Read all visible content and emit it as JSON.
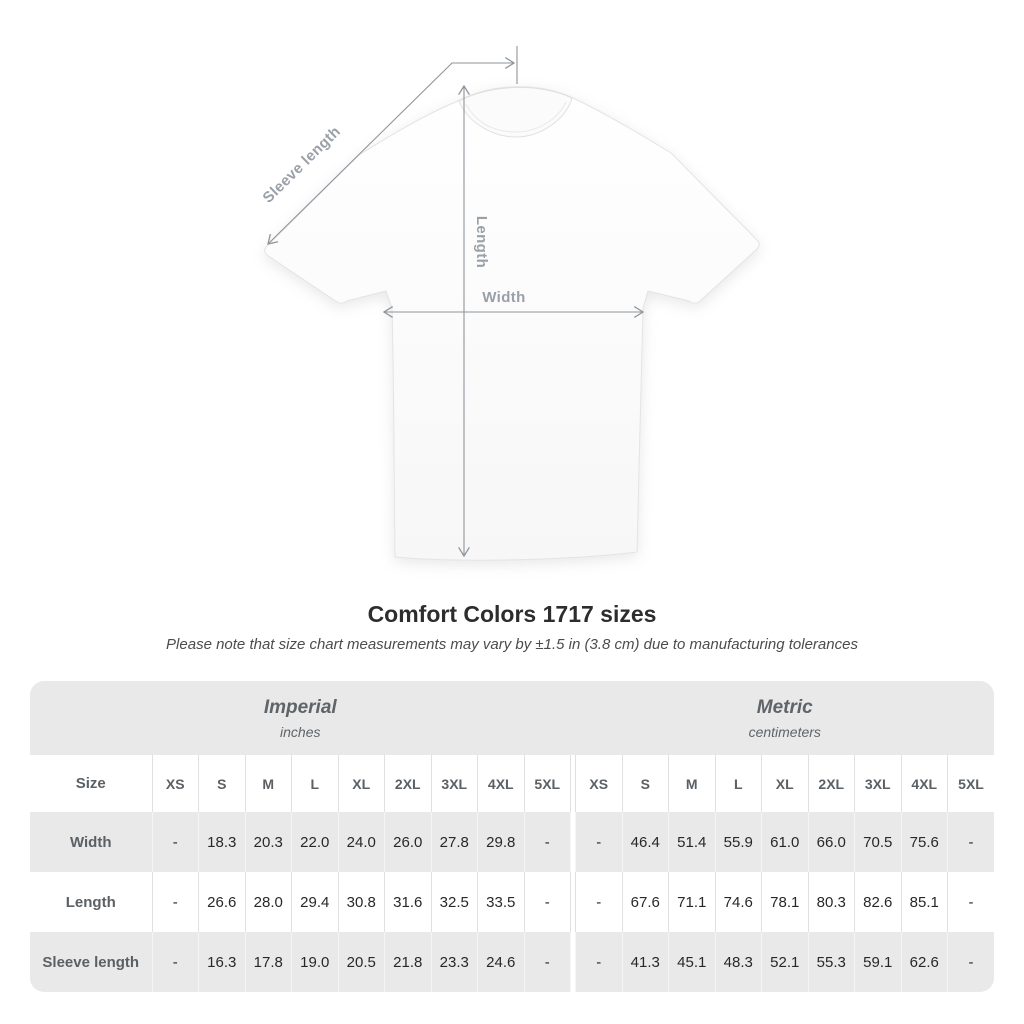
{
  "title": "Comfort Colors 1717 sizes",
  "subtitle": "Please note that size chart measurements may vary by ±1.5 in (3.8 cm) due to manufacturing tolerances",
  "diagram": {
    "labels": {
      "sleeve_length": "Sleeve length",
      "length": "Length",
      "width": "Width"
    },
    "line_color": "#8f959b",
    "label_color": "#9aa0a7"
  },
  "table": {
    "size_header": "Size",
    "groups": [
      {
        "name": "Imperial",
        "unit": "inches"
      },
      {
        "name": "Metric",
        "unit": "centimeters"
      }
    ],
    "sizes": [
      "XS",
      "S",
      "M",
      "L",
      "XL",
      "2XL",
      "3XL",
      "4XL",
      "5XL"
    ],
    "rows": [
      {
        "label": "Width",
        "imperial": [
          "-",
          "18.3",
          "20.3",
          "22.0",
          "24.0",
          "26.0",
          "27.8",
          "29.8",
          "-"
        ],
        "metric": [
          "-",
          "46.4",
          "51.4",
          "55.9",
          "61.0",
          "66.0",
          "70.5",
          "75.6",
          "-"
        ]
      },
      {
        "label": "Length",
        "imperial": [
          "-",
          "26.6",
          "28.0",
          "29.4",
          "30.8",
          "31.6",
          "32.5",
          "33.5",
          "-"
        ],
        "metric": [
          "-",
          "67.6",
          "71.1",
          "74.6",
          "78.1",
          "80.3",
          "82.6",
          "85.1",
          "-"
        ]
      },
      {
        "label": "Sleeve length",
        "imperial": [
          "-",
          "16.3",
          "17.8",
          "19.0",
          "20.5",
          "21.8",
          "23.3",
          "24.6",
          "-"
        ],
        "metric": [
          "-",
          "41.3",
          "45.1",
          "48.3",
          "52.1",
          "55.3",
          "59.1",
          "62.6",
          "-"
        ]
      }
    ],
    "colors": {
      "band_bg": "#e9e9e9",
      "stripe_bg": "#e9e9e9",
      "white_bg": "#ffffff",
      "header_text": "#5f6468",
      "value_text": "#26282a"
    }
  },
  "chart_data": {
    "type": "table",
    "title": "Comfort Colors 1717 sizes",
    "note": "Please note that size chart measurements may vary by ±1.5 in (3.8 cm) due to manufacturing tolerances",
    "column_groups": [
      "Imperial (inches)",
      "Metric (centimeters)"
    ],
    "categories": [
      "XS",
      "S",
      "M",
      "L",
      "XL",
      "2XL",
      "3XL",
      "4XL",
      "5XL"
    ],
    "series": [
      {
        "name": "Width (in)",
        "values": [
          null,
          18.3,
          20.3,
          22.0,
          24.0,
          26.0,
          27.8,
          29.8,
          null
        ]
      },
      {
        "name": "Length (in)",
        "values": [
          null,
          26.6,
          28.0,
          29.4,
          30.8,
          31.6,
          32.5,
          33.5,
          null
        ]
      },
      {
        "name": "Sleeve length (in)",
        "values": [
          null,
          16.3,
          17.8,
          19.0,
          20.5,
          21.8,
          23.3,
          24.6,
          null
        ]
      },
      {
        "name": "Width (cm)",
        "values": [
          null,
          46.4,
          51.4,
          55.9,
          61.0,
          66.0,
          70.5,
          75.6,
          null
        ]
      },
      {
        "name": "Length (cm)",
        "values": [
          null,
          67.6,
          71.1,
          74.6,
          78.1,
          80.3,
          82.6,
          85.1,
          null
        ]
      },
      {
        "name": "Sleeve length (cm)",
        "values": [
          null,
          41.3,
          45.1,
          48.3,
          52.1,
          55.3,
          59.1,
          62.6,
          null
        ]
      }
    ]
  }
}
